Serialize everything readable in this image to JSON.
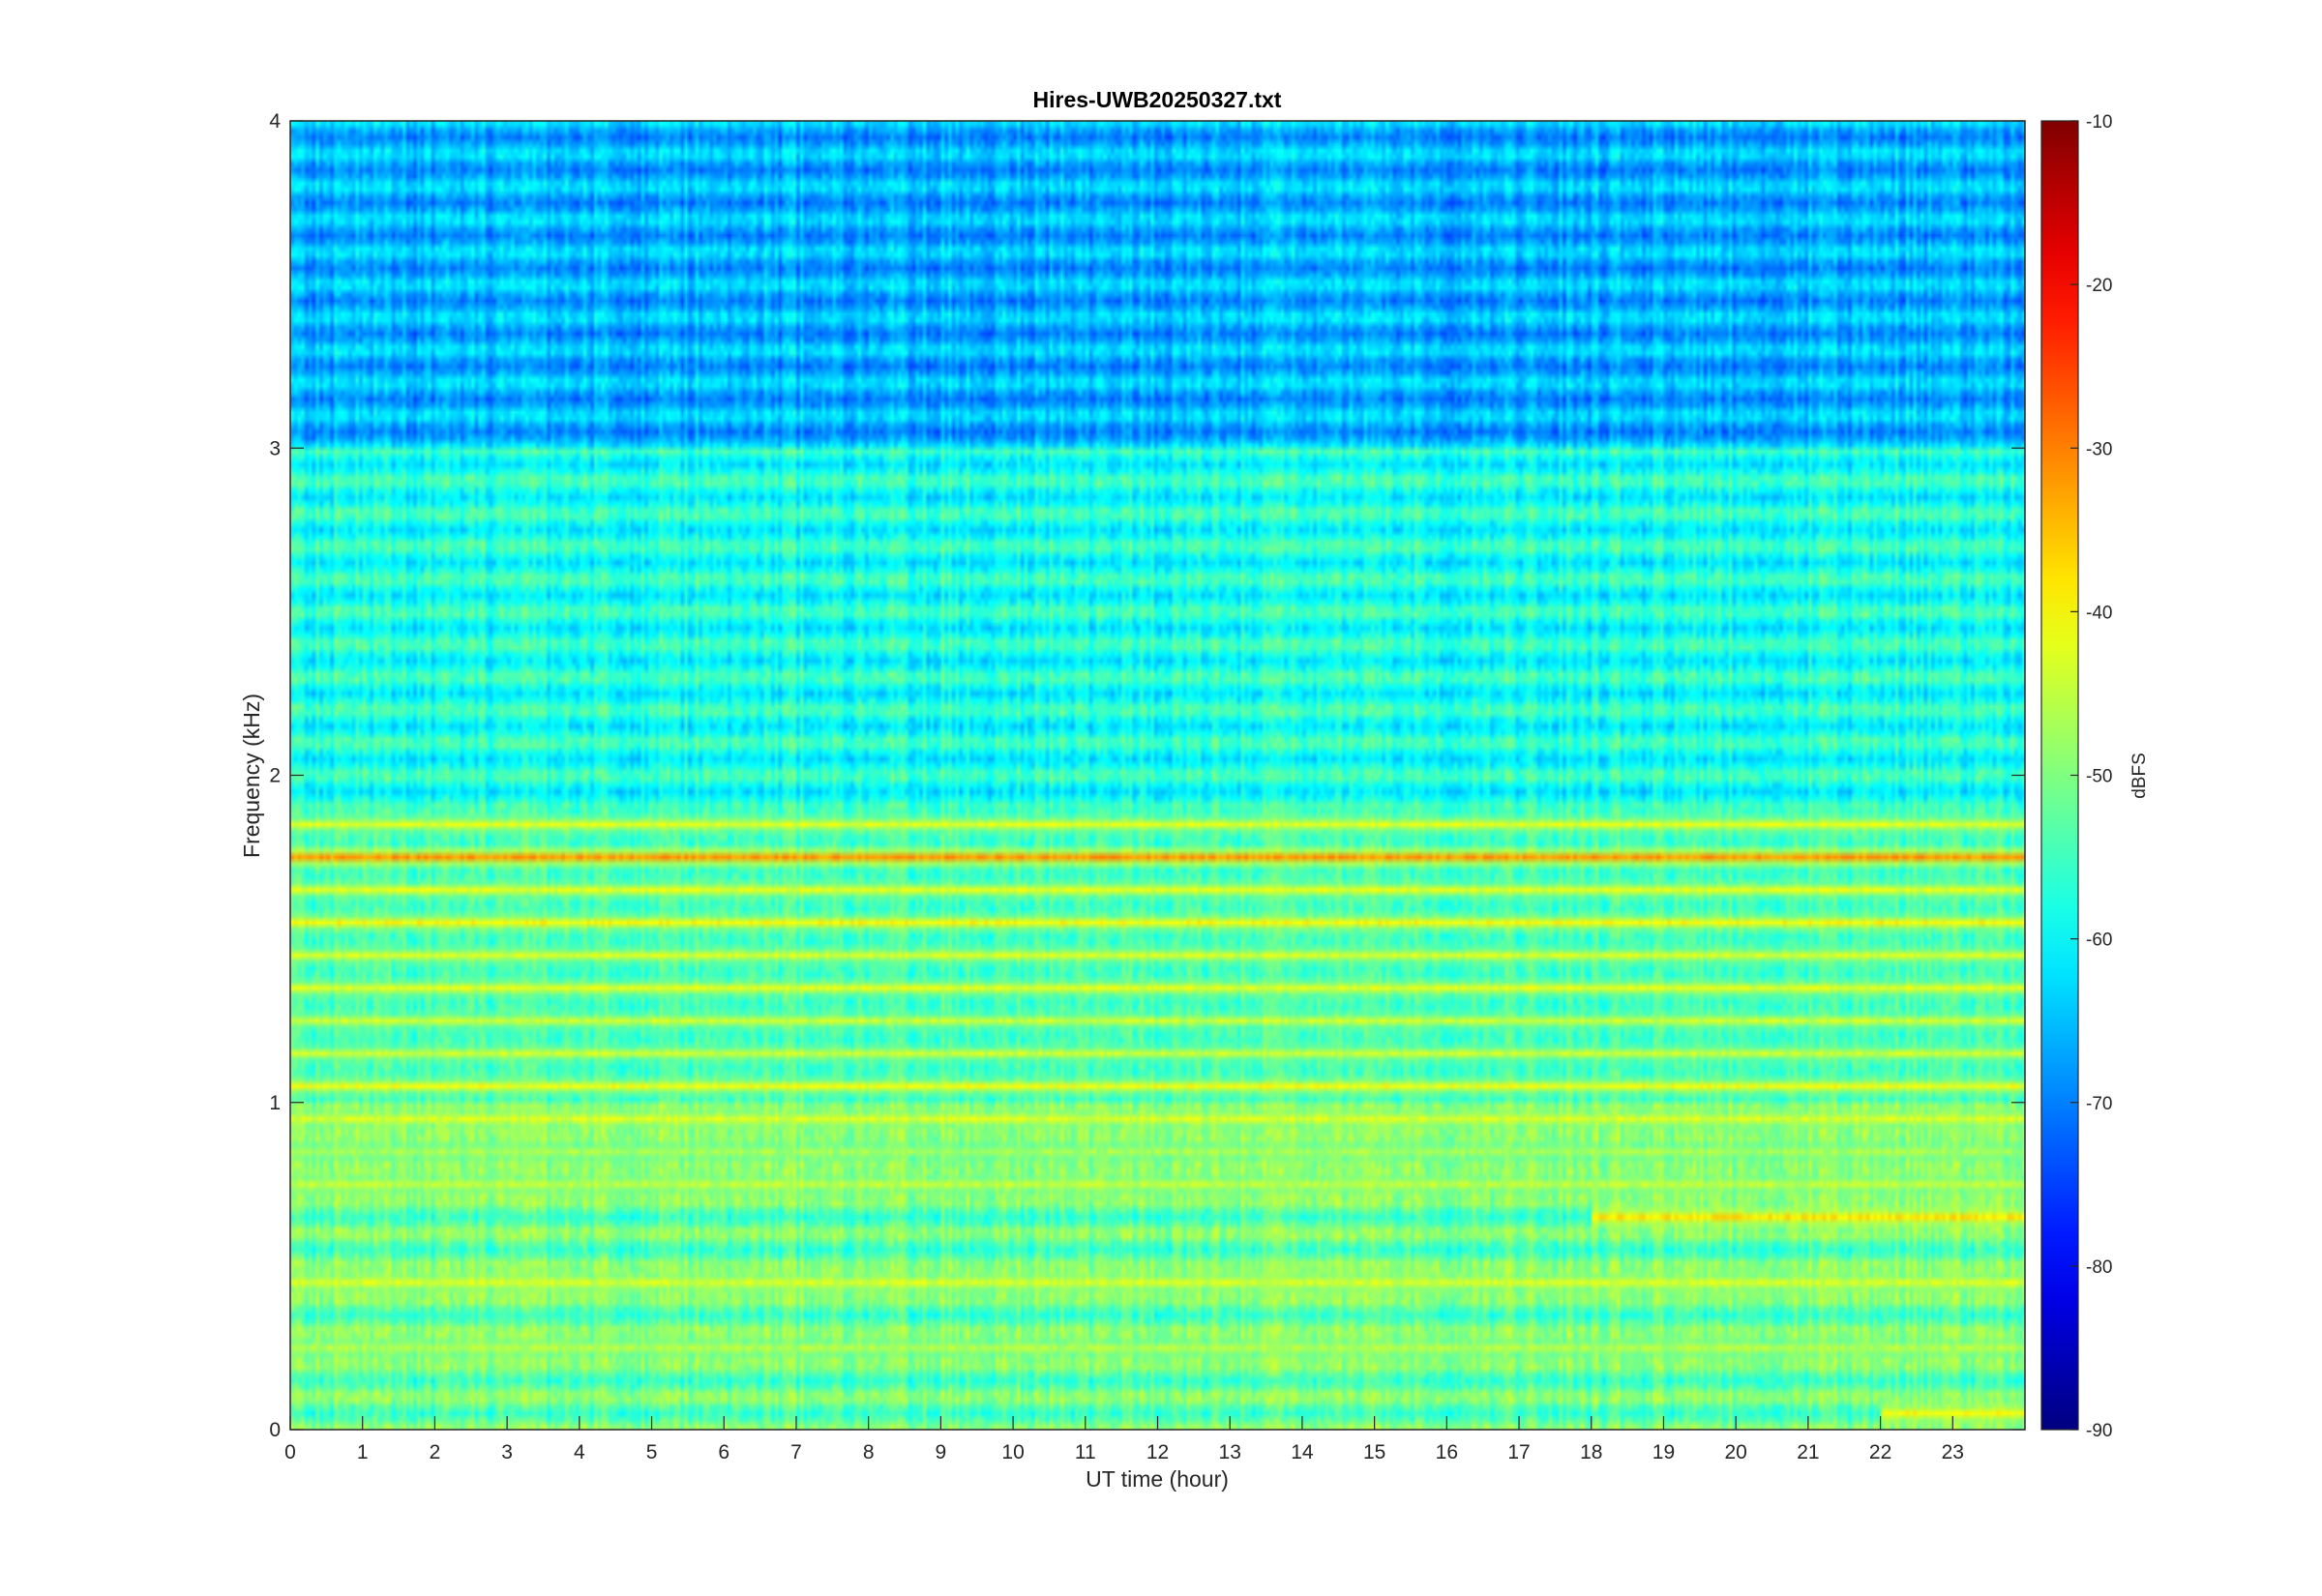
{
  "chart_data": {
    "type": "heatmap",
    "title": "Hires-UWB20250327.txt",
    "xlabel": "UT time (hour)",
    "ylabel": "Frequency (kHz)",
    "xlim": [
      0,
      24
    ],
    "ylim": [
      0,
      4
    ],
    "x_ticks": [
      0,
      1,
      2,
      3,
      4,
      5,
      6,
      7,
      8,
      9,
      10,
      11,
      12,
      13,
      14,
      15,
      16,
      17,
      18,
      19,
      20,
      21,
      22,
      23
    ],
    "y_ticks": [
      0,
      1,
      2,
      3,
      4
    ],
    "grid": false,
    "colormap": "jet",
    "colorbar": {
      "label": "dBFS",
      "clim": [
        -90,
        -10
      ],
      "ticks": [
        -10,
        -20,
        -30,
        -40,
        -50,
        -60,
        -70,
        -80,
        -90
      ],
      "placement": "right"
    },
    "background_level_dbfs": {
      "above_3kHz": -66,
      "1_to_3kHz": -58,
      "below_1kHz": -52
    },
    "bands": [
      {
        "freq_khz": 1.75,
        "level_dbfs": -32,
        "span_hours": [
          0,
          24
        ],
        "note": "strongest persistent line"
      },
      {
        "freq_khz": 1.85,
        "level_dbfs": -42,
        "span_hours": [
          0,
          24
        ]
      },
      {
        "freq_khz": 1.65,
        "level_dbfs": -42,
        "span_hours": [
          0,
          24
        ]
      },
      {
        "freq_khz": 1.55,
        "level_dbfs": -40,
        "span_hours": [
          0,
          24
        ]
      },
      {
        "freq_khz": 1.45,
        "level_dbfs": -43,
        "span_hours": [
          0,
          24
        ]
      },
      {
        "freq_khz": 1.35,
        "level_dbfs": -42,
        "span_hours": [
          0,
          24
        ]
      },
      {
        "freq_khz": 1.25,
        "level_dbfs": -44,
        "span_hours": [
          0,
          24
        ]
      },
      {
        "freq_khz": 1.15,
        "level_dbfs": -44,
        "span_hours": [
          0,
          24
        ]
      },
      {
        "freq_khz": 1.05,
        "level_dbfs": -41,
        "span_hours": [
          0,
          24
        ]
      },
      {
        "freq_khz": 0.95,
        "level_dbfs": -43,
        "span_hours": [
          0,
          24
        ]
      },
      {
        "freq_khz": 0.85,
        "level_dbfs": -47,
        "span_hours": [
          0,
          24
        ]
      },
      {
        "freq_khz": 0.75,
        "level_dbfs": -45,
        "span_hours": [
          0,
          24
        ]
      },
      {
        "freq_khz": 0.65,
        "level_dbfs": -38,
        "span_hours": [
          18,
          24
        ],
        "note": "intensifies toward end of day"
      },
      {
        "freq_khz": 0.45,
        "level_dbfs": -43,
        "span_hours": [
          0,
          24
        ]
      },
      {
        "freq_khz": 0.25,
        "level_dbfs": -46,
        "span_hours": [
          0,
          24
        ]
      },
      {
        "freq_khz": 0.05,
        "level_dbfs": -40,
        "span_hours": [
          22,
          24
        ]
      }
    ]
  }
}
